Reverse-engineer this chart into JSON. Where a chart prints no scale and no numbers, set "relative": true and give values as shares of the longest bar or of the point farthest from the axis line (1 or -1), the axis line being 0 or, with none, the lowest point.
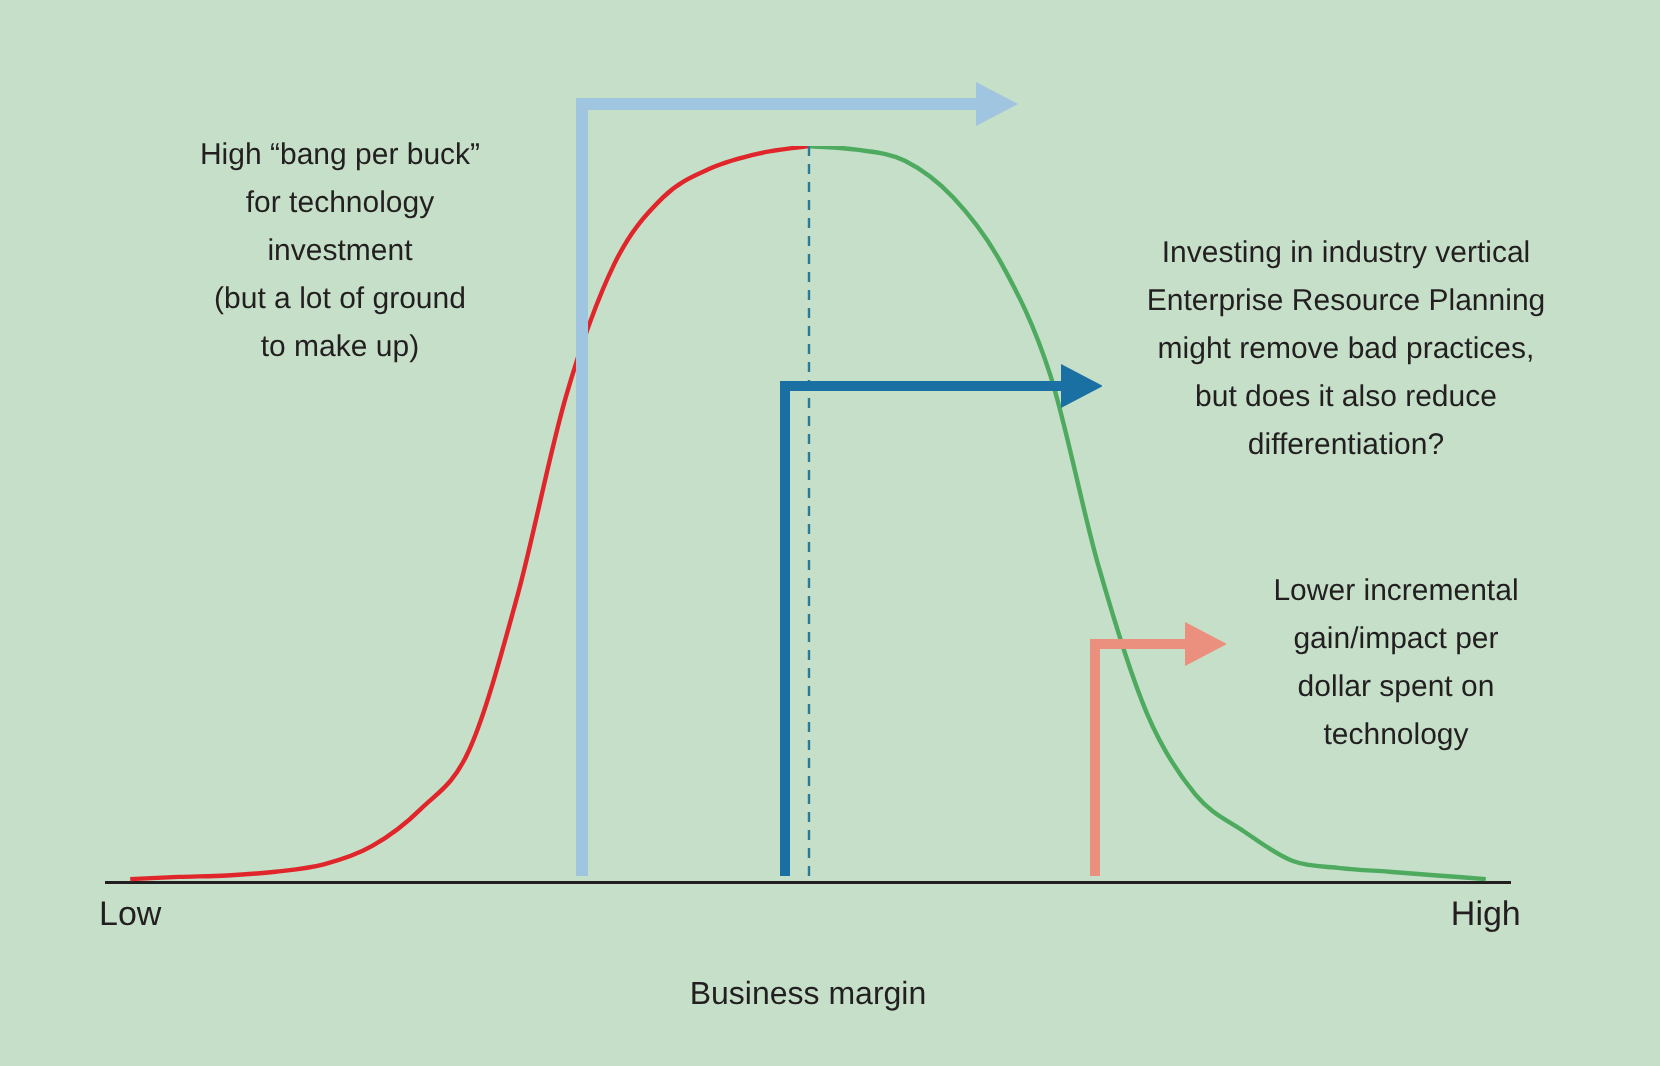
{
  "chart_data": {
    "type": "line",
    "xlabel": "Business margin",
    "relative": true,
    "tick_labels": "x",
    "categories": [
      "Low",
      null,
      null,
      null,
      null,
      null,
      null,
      null,
      null,
      null,
      null,
      null,
      null,
      null,
      null,
      null,
      null,
      null,
      null,
      null,
      null,
      null,
      null,
      null,
      null,
      null,
      null,
      null,
      "High"
    ],
    "series": [
      {
        "color": "#e0262a",
        "values": [
          0.005,
          0.008,
          0.01,
          0.015,
          0.025,
          0.05,
          0.1,
          0.18,
          0.39,
          0.66,
          0.84,
          0.93,
          0.97,
          0.99,
          1,
          null,
          null,
          null,
          null,
          null,
          null,
          null,
          null,
          null,
          null,
          null,
          null,
          null,
          null
        ]
      },
      {
        "color": "#4daa5e",
        "values": [
          null,
          null,
          null,
          null,
          null,
          null,
          null,
          null,
          null,
          null,
          null,
          null,
          null,
          null,
          1,
          0.995,
          0.98,
          0.93,
          0.84,
          0.69,
          0.43,
          0.23,
          0.12,
          0.07,
          0.03,
          0.02,
          0.015,
          0.01,
          0.005
        ]
      }
    ],
    "annotations": [
      "High “bang per buck”\nfor technology\ninvestment\n(but a lot of ground\nto make up)",
      "Investing in industry vertical\nEnterprise Resource Planning\nmight remove bad practices,\nbut does it also reduce\ndifferentiation?",
      "Lower incremental\ngain/impact per\ndollar spent on\ntechnology"
    ],
    "grid": false,
    "legend": false,
    "marker": "none",
    "line_style": "solid"
  }
}
